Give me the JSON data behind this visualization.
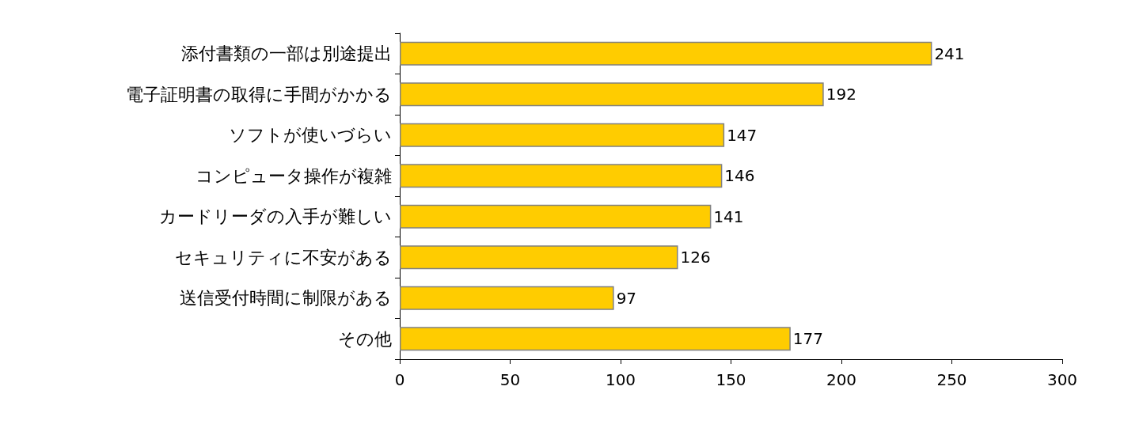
{
  "chart_data": {
    "type": "bar",
    "orientation": "horizontal",
    "categories": [
      "添付書類の一部は別途提出",
      "電子証明書の取得に手間がかかる",
      "ソフトが使いづらい",
      "コンピュータ操作が複雑",
      "カードリーダの入手が難しい",
      "セキュリティに不安がある",
      "送信受付時間に制限がある",
      "その他"
    ],
    "values": [
      241,
      192,
      147,
      146,
      141,
      126,
      97,
      177
    ],
    "color": "#ffcc00",
    "xlim": [
      0,
      300
    ],
    "xticks": [
      0,
      50,
      100,
      150,
      200,
      250,
      300
    ],
    "grid": false,
    "data_labels": true
  }
}
